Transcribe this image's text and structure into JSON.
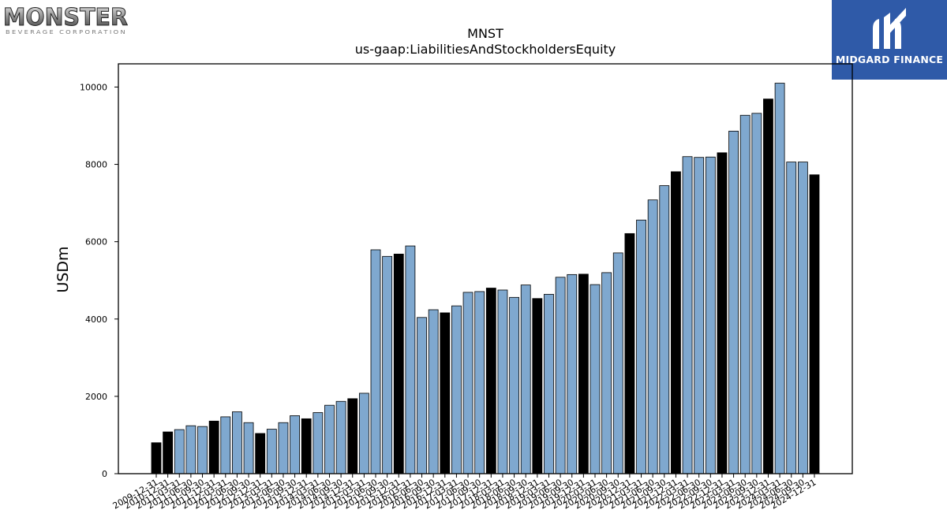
{
  "logos": {
    "left_word": "MONSTER",
    "left_sub": "BEVERAGE CORPORATION",
    "right_brand": "MIDGARD FINANCE"
  },
  "colors": {
    "bar_light": "#7fa8cf",
    "bar_dark": "#000000",
    "brand_blue": "#2f5aa8"
  },
  "chart_data": {
    "type": "bar",
    "title": "MNST",
    "subtitle": "us-gaap:LiabilitiesAndStockholdersEquity",
    "ylabel": "USDm",
    "xlabel": "",
    "ylim": [
      0,
      10600
    ],
    "yticks": [
      0,
      2000,
      4000,
      6000,
      8000,
      10000
    ],
    "grid": false,
    "categories": [
      "2009-12-31",
      "2010-12-31",
      "2011-03-31",
      "2011-06-30",
      "2011-09-30",
      "2011-12-31",
      "2012-03-31",
      "2012-06-30",
      "2012-09-30",
      "2012-12-31",
      "2013-03-31",
      "2013-06-30",
      "2013-09-30",
      "2013-12-31",
      "2014-03-31",
      "2014-06-30",
      "2014-09-30",
      "2014-12-31",
      "2015-03-31",
      "2015-06-30",
      "2015-09-30",
      "2015-12-31",
      "2016-03-31",
      "2016-06-30",
      "2016-09-30",
      "2016-12-31",
      "2017-03-31",
      "2017-06-30",
      "2017-09-30",
      "2017-12-31",
      "2018-03-31",
      "2018-06-30",
      "2018-09-30",
      "2018-12-31",
      "2019-03-31",
      "2019-06-30",
      "2019-09-30",
      "2019-12-31",
      "2020-03-31",
      "2020-06-30",
      "2020-09-30",
      "2020-12-31",
      "2021-03-31",
      "2021-06-30",
      "2021-09-30",
      "2021-12-31",
      "2022-03-31",
      "2022-06-30",
      "2022-09-30",
      "2022-12-31",
      "2023-03-31",
      "2023-06-30",
      "2023-09-30",
      "2023-12-31",
      "2024-03-31",
      "2024-06-30",
      "2024-09-30",
      "2024-12-31"
    ],
    "values": [
      800,
      1080,
      1140,
      1240,
      1220,
      1360,
      1470,
      1600,
      1320,
      1040,
      1150,
      1320,
      1500,
      1420,
      1580,
      1770,
      1870,
      1940,
      2080,
      5790,
      5620,
      5680,
      5890,
      4040,
      4240,
      4160,
      4340,
      4690,
      4710,
      4800,
      4750,
      4560,
      4880,
      4530,
      4640,
      5080,
      5150,
      5160,
      4890,
      5200,
      5710,
      6210,
      6560,
      7080,
      7450,
      7810,
      8200,
      8180,
      8190,
      8300,
      8860,
      9270,
      9320,
      9690,
      10100,
      8060,
      8060,
      7730
    ],
    "highlight": [
      true,
      true,
      false,
      false,
      false,
      true,
      false,
      false,
      false,
      true,
      false,
      false,
      false,
      true,
      false,
      false,
      false,
      true,
      false,
      false,
      false,
      true,
      false,
      false,
      false,
      true,
      false,
      false,
      false,
      true,
      false,
      false,
      false,
      true,
      false,
      false,
      false,
      true,
      false,
      false,
      false,
      true,
      false,
      false,
      false,
      true,
      false,
      false,
      false,
      true,
      false,
      false,
      false,
      true,
      false,
      false,
      false,
      true
    ]
  }
}
